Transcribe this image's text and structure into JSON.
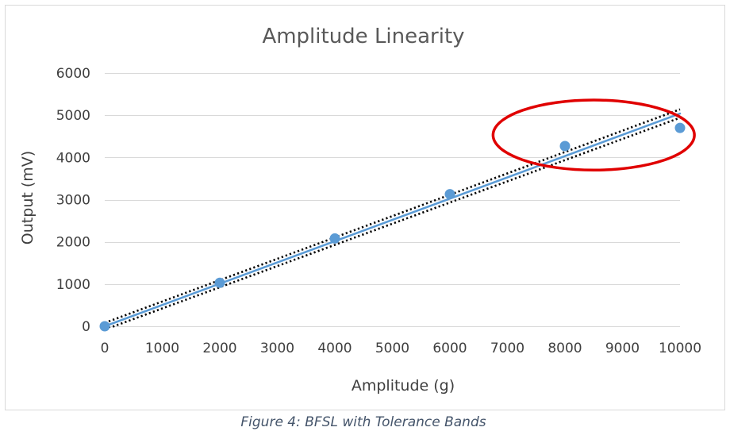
{
  "chart_data": {
    "type": "scatter",
    "title": "Amplitude Linearity",
    "xlabel": "Amplitude  (g)",
    "ylabel": "Output  (mV)",
    "xlim": [
      0,
      10000
    ],
    "ylim": [
      0,
      6000
    ],
    "x_ticks": [
      0,
      1000,
      2000,
      3000,
      4000,
      5000,
      6000,
      7000,
      8000,
      9000,
      10000
    ],
    "y_ticks": [
      0,
      1000,
      2000,
      3000,
      4000,
      5000,
      6000
    ],
    "grid": "horizontal",
    "legend": "none",
    "series": [
      {
        "kind": "points",
        "x": [
          0,
          2000,
          4000,
          6000,
          8000,
          10000
        ],
        "y": [
          0,
          1030,
          2080,
          3130,
          4270,
          4700
        ],
        "color": "#5b9bd5"
      },
      {
        "kind": "best-fit-line",
        "x": [
          0,
          10000
        ],
        "y": [
          0,
          5040
        ],
        "color": "#5b9bd5"
      },
      {
        "kind": "upper-tolerance-band",
        "x": [
          0,
          10000
        ],
        "y": [
          80,
          5140
        ],
        "color": "#000000",
        "style": "dotted"
      },
      {
        "kind": "lower-tolerance-band",
        "x": [
          0,
          10000
        ],
        "y": [
          -80,
          4940
        ],
        "color": "#000000",
        "style": "dotted"
      }
    ],
    "highlight": {
      "shape": "ellipse",
      "color": "#e00000",
      "center": [
        8500,
        4530
      ],
      "radii": [
        1750,
        830
      ]
    }
  },
  "caption": "Figure 4: BFSL with Tolerance Bands",
  "colors": {
    "points": "#5b9bd5",
    "fit_line": "#5b9bd5",
    "tolerance": "#000000",
    "highlight": "#e00000",
    "caption": "#44546a"
  }
}
